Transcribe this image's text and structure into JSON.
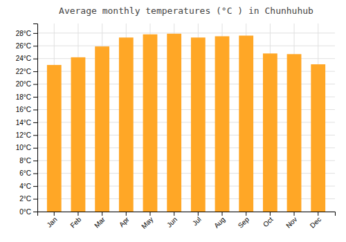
{
  "chart_data": {
    "type": "bar",
    "title": "Average monthly temperatures (°C ) in Chunhuhub",
    "categories": [
      "Jan",
      "Feb",
      "Mar",
      "Apr",
      "May",
      "Jun",
      "Jul",
      "Aug",
      "Sep",
      "Oct",
      "Nov",
      "Dec"
    ],
    "values": [
      23.0,
      24.2,
      25.9,
      27.3,
      27.8,
      27.9,
      27.3,
      27.5,
      27.6,
      24.8,
      24.7,
      23.1
    ],
    "color": "#FFA726",
    "ylim": [
      0,
      29.5
    ],
    "yticks": [
      {
        "value": 0,
        "label": "0°C"
      },
      {
        "value": 2,
        "label": "2°C"
      },
      {
        "value": 4,
        "label": "4°C"
      },
      {
        "value": 6,
        "label": "6°C"
      },
      {
        "value": 8,
        "label": "8°C"
      },
      {
        "value": 10,
        "label": "10°C"
      },
      {
        "value": 12,
        "label": "12°C"
      },
      {
        "value": 14,
        "label": "14°C"
      },
      {
        "value": 16,
        "label": "16°C"
      },
      {
        "value": 18,
        "label": "18°C"
      },
      {
        "value": 20,
        "label": "20°C"
      },
      {
        "value": 22,
        "label": "22°C"
      },
      {
        "value": 24,
        "label": "24°C"
      },
      {
        "value": 26,
        "label": "26°C"
      },
      {
        "value": 28,
        "label": "28°C"
      }
    ],
    "grid": true
  }
}
